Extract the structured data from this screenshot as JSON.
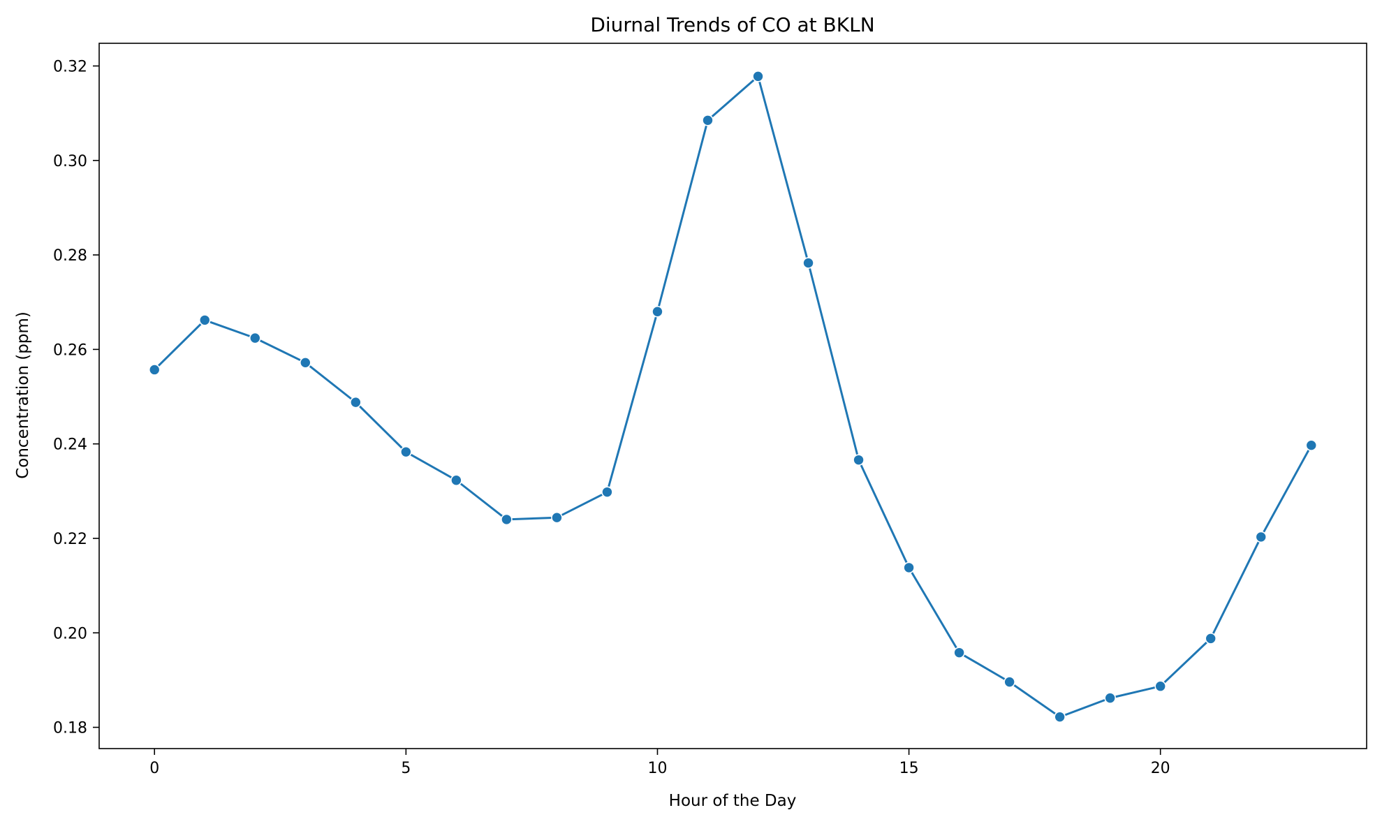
{
  "chart_data": {
    "type": "line",
    "title": "Diurnal Trends of CO at BKLN",
    "xlabel": "Hour of the Day",
    "ylabel": "Concentration (ppm)",
    "xlim": [
      -1.1,
      24.1
    ],
    "ylim": [
      0.1755,
      0.3248
    ],
    "xticks": [
      0,
      5,
      10,
      15,
      20
    ],
    "xtick_labels": [
      "0",
      "5",
      "10",
      "15",
      "20"
    ],
    "yticks": [
      0.18,
      0.2,
      0.22,
      0.24,
      0.26,
      0.28,
      0.3,
      0.32
    ],
    "ytick_labels": [
      "0.18",
      "0.20",
      "0.22",
      "0.24",
      "0.26",
      "0.28",
      "0.30",
      "0.32"
    ],
    "grid": false,
    "series": [
      {
        "color": "#1f77b4",
        "marker": "circle",
        "x": [
          0,
          1,
          2,
          3,
          4,
          5,
          6,
          7,
          8,
          9,
          10,
          11,
          12,
          13,
          14,
          15,
          16,
          17,
          18,
          19,
          20,
          21,
          22,
          23
        ],
        "y": [
          0.2557,
          0.2662,
          0.2624,
          0.2572,
          0.2488,
          0.2383,
          0.2323,
          0.224,
          0.2244,
          0.2298,
          0.268,
          0.3085,
          0.3178,
          0.2783,
          0.2366,
          0.2138,
          0.1958,
          0.1896,
          0.1822,
          0.1862,
          0.1887,
          0.1988,
          0.2203,
          0.2397
        ]
      }
    ]
  }
}
